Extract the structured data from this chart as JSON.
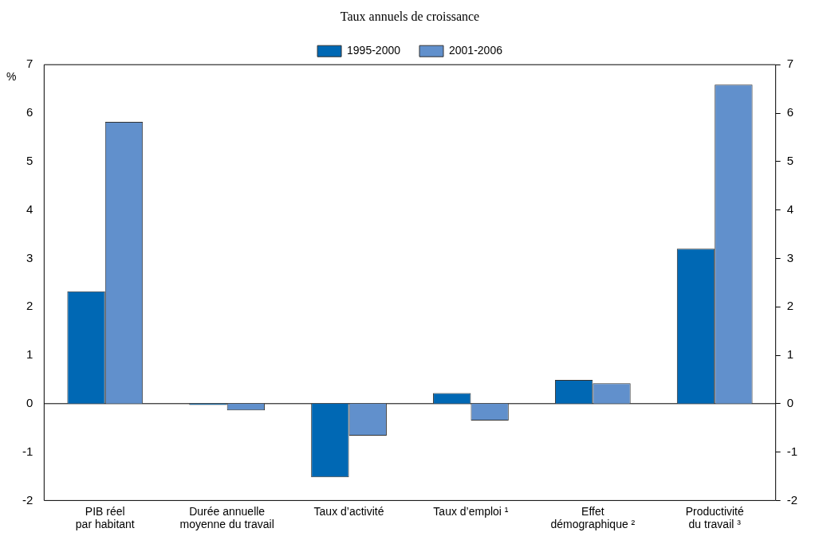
{
  "chart_data": {
    "type": "bar",
    "title": "Taux annuels de croissance",
    "ylabel": "%",
    "categories": [
      "PIB réel\npar habitant",
      "Durée annuelle\nmoyenne du travail",
      "Taux d’activité",
      "Taux d’emploi ¹",
      "Effet\ndémographique ²",
      "Productivité\ndu travail ³"
    ],
    "series": [
      {
        "name": "1995-2000",
        "color": "#0068b4",
        "values": [
          2.32,
          -0.03,
          -1.52,
          0.22,
          0.49,
          3.2
        ]
      },
      {
        "name": "2001-2006",
        "color": "#6190cc",
        "values": [
          5.82,
          -0.14,
          -0.66,
          -0.35,
          0.42,
          6.59
        ]
      }
    ],
    "ylim": [
      -2,
      7
    ],
    "yticks": [
      -2,
      -1,
      0,
      1,
      2,
      3,
      4,
      5,
      6,
      7
    ],
    "y2lim": [
      -2,
      7
    ],
    "y2ticks": [
      -2,
      -1,
      0,
      1,
      2,
      3,
      4,
      5,
      6,
      7
    ],
    "ref_lines": [
      {
        "axis": "y",
        "value": 0,
        "color": "#000000"
      }
    ],
    "grid": false,
    "legend": "top"
  }
}
